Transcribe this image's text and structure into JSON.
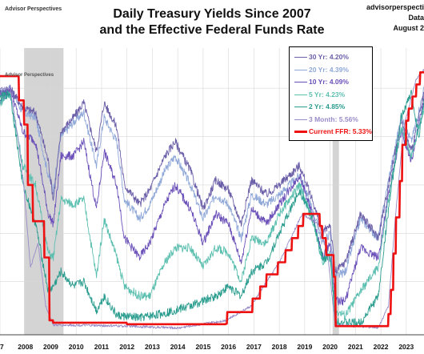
{
  "header": {
    "brand": "Advisor Perspectives",
    "title_line1": "Daily Treasury Yields Since 2007",
    "title_line2": "and the Effective Federal Funds Rate",
    "source_line1": "advisorperspecti",
    "source_line2": "Data",
    "source_line3": "August 2"
  },
  "colors": {
    "y30": "#6b5fa8",
    "y20": "#8fa8d8",
    "y10": "#6a4fb8",
    "y5": "#5bbfb0",
    "y2": "#2a9d8f",
    "m3": "#9a8cc8",
    "ffr": "#ee1111",
    "recession": "#d4d4d4",
    "grid": "#d8d8d8"
  },
  "chart_data": {
    "type": "line",
    "title": "Daily Treasury Yields Since 2007 and the Effective Federal Funds Rate",
    "xlabel": "",
    "ylabel": "",
    "xlim": [
      2007.0,
      2024.0
    ],
    "ylim": [
      0,
      5.6
    ],
    "x_ticks": [
      "7",
      "2008",
      "2009",
      "2010",
      "2011",
      "2012",
      "2013",
      "2014",
      "2015",
      "2016",
      "2017",
      "2018",
      "2019",
      "2020",
      "2021",
      "2022",
      "2023"
    ],
    "grid": true,
    "recessions": [
      [
        2007.95,
        2009.5
      ],
      [
        2020.1,
        2020.35
      ]
    ],
    "legend_position": "top-right",
    "series": [
      {
        "name": "30 Yr: 4.20%",
        "key": "y30",
        "points": [
          [
            2007.0,
            4.9
          ],
          [
            2007.4,
            5.0
          ],
          [
            2007.9,
            4.6
          ],
          [
            2008.4,
            4.5
          ],
          [
            2008.9,
            3.5
          ],
          [
            2009.1,
            2.7
          ],
          [
            2009.4,
            4.1
          ],
          [
            2009.9,
            4.4
          ],
          [
            2010.3,
            4.7
          ],
          [
            2010.8,
            3.7
          ],
          [
            2011.1,
            4.7
          ],
          [
            2011.6,
            4.2
          ],
          [
            2011.9,
            3.0
          ],
          [
            2012.5,
            2.6
          ],
          [
            2012.9,
            2.9
          ],
          [
            2013.5,
            3.6
          ],
          [
            2013.9,
            3.9
          ],
          [
            2014.5,
            3.3
          ],
          [
            2015.0,
            2.5
          ],
          [
            2015.5,
            3.1
          ],
          [
            2016.0,
            2.9
          ],
          [
            2016.5,
            2.2
          ],
          [
            2016.9,
            3.1
          ],
          [
            2017.5,
            2.8
          ],
          [
            2018.0,
            3.0
          ],
          [
            2018.8,
            3.4
          ],
          [
            2019.3,
            2.7
          ],
          [
            2019.7,
            2.0
          ],
          [
            2020.0,
            2.2
          ],
          [
            2020.2,
            1.2
          ],
          [
            2020.6,
            1.4
          ],
          [
            2021.2,
            2.4
          ],
          [
            2021.9,
            1.9
          ],
          [
            2022.3,
            3.0
          ],
          [
            2022.8,
            4.3
          ],
          [
            2023.2,
            3.7
          ],
          [
            2023.8,
            5.1
          ],
          [
            2024.0,
            4.2
          ]
        ]
      },
      {
        "name": "20 Yr: 4.39%",
        "key": "y20",
        "points": [
          [
            2007.0,
            4.9
          ],
          [
            2007.4,
            5.0
          ],
          [
            2007.9,
            4.5
          ],
          [
            2008.4,
            4.4
          ],
          [
            2008.9,
            3.2
          ],
          [
            2009.1,
            2.9
          ],
          [
            2009.4,
            4.0
          ],
          [
            2009.9,
            4.3
          ],
          [
            2010.3,
            4.5
          ],
          [
            2010.8,
            3.4
          ],
          [
            2011.1,
            4.4
          ],
          [
            2011.6,
            3.9
          ],
          [
            2011.9,
            2.7
          ],
          [
            2012.5,
            2.3
          ],
          [
            2012.9,
            2.6
          ],
          [
            2013.5,
            3.3
          ],
          [
            2013.9,
            3.6
          ],
          [
            2014.5,
            3.0
          ],
          [
            2015.0,
            2.3
          ],
          [
            2015.5,
            2.8
          ],
          [
            2016.0,
            2.6
          ],
          [
            2016.5,
            1.9
          ],
          [
            2016.9,
            2.8
          ],
          [
            2017.5,
            2.6
          ],
          [
            2018.0,
            2.8
          ],
          [
            2018.8,
            3.2
          ],
          [
            2019.3,
            2.5
          ],
          [
            2019.7,
            1.8
          ],
          [
            2020.0,
            2.0
          ],
          [
            2020.2,
            1.1
          ],
          [
            2020.6,
            1.2
          ],
          [
            2021.2,
            2.3
          ],
          [
            2021.9,
            1.9
          ],
          [
            2022.3,
            3.1
          ],
          [
            2022.8,
            4.4
          ],
          [
            2023.2,
            3.9
          ],
          [
            2023.8,
            5.2
          ],
          [
            2024.0,
            4.4
          ]
        ]
      },
      {
        "name": "10 Yr: 4.09%",
        "key": "y10",
        "points": [
          [
            2007.0,
            4.7
          ],
          [
            2007.4,
            5.0
          ],
          [
            2007.9,
            4.1
          ],
          [
            2008.4,
            3.9
          ],
          [
            2008.9,
            2.4
          ],
          [
            2009.1,
            2.2
          ],
          [
            2009.4,
            3.6
          ],
          [
            2009.9,
            3.6
          ],
          [
            2010.3,
            3.9
          ],
          [
            2010.8,
            2.5
          ],
          [
            2011.1,
            3.7
          ],
          [
            2011.6,
            3.0
          ],
          [
            2011.9,
            1.9
          ],
          [
            2012.5,
            1.5
          ],
          [
            2012.9,
            1.8
          ],
          [
            2013.5,
            2.6
          ],
          [
            2013.9,
            3.0
          ],
          [
            2014.5,
            2.5
          ],
          [
            2015.0,
            1.8
          ],
          [
            2015.5,
            2.4
          ],
          [
            2016.0,
            2.2
          ],
          [
            2016.5,
            1.4
          ],
          [
            2016.9,
            2.5
          ],
          [
            2017.5,
            2.2
          ],
          [
            2018.0,
            2.6
          ],
          [
            2018.8,
            3.2
          ],
          [
            2019.3,
            2.4
          ],
          [
            2019.7,
            1.5
          ],
          [
            2020.0,
            1.8
          ],
          [
            2020.2,
            0.6
          ],
          [
            2020.6,
            0.6
          ],
          [
            2021.2,
            1.7
          ],
          [
            2021.9,
            1.5
          ],
          [
            2022.3,
            2.8
          ],
          [
            2022.8,
            4.1
          ],
          [
            2023.2,
            3.5
          ],
          [
            2023.8,
            5.0
          ],
          [
            2024.0,
            4.1
          ]
        ]
      },
      {
        "name": "5 Yr: 4.23%",
        "key": "y5",
        "points": [
          [
            2007.0,
            4.7
          ],
          [
            2007.4,
            4.9
          ],
          [
            2007.9,
            3.4
          ],
          [
            2008.4,
            3.0
          ],
          [
            2008.9,
            1.6
          ],
          [
            2009.1,
            1.5
          ],
          [
            2009.4,
            2.7
          ],
          [
            2009.9,
            2.6
          ],
          [
            2010.3,
            2.7
          ],
          [
            2010.8,
            1.1
          ],
          [
            2011.1,
            2.3
          ],
          [
            2011.6,
            1.5
          ],
          [
            2011.9,
            0.9
          ],
          [
            2012.5,
            0.7
          ],
          [
            2012.9,
            0.7
          ],
          [
            2013.5,
            1.4
          ],
          [
            2013.9,
            1.7
          ],
          [
            2014.5,
            1.7
          ],
          [
            2015.0,
            1.3
          ],
          [
            2015.5,
            1.7
          ],
          [
            2016.0,
            1.6
          ],
          [
            2016.5,
            1.0
          ],
          [
            2016.9,
            1.9
          ],
          [
            2017.5,
            1.8
          ],
          [
            2018.0,
            2.4
          ],
          [
            2018.8,
            3.0
          ],
          [
            2019.3,
            2.3
          ],
          [
            2019.7,
            1.4
          ],
          [
            2020.0,
            1.6
          ],
          [
            2020.2,
            0.4
          ],
          [
            2020.6,
            0.3
          ],
          [
            2021.2,
            0.8
          ],
          [
            2021.9,
            1.3
          ],
          [
            2022.3,
            2.7
          ],
          [
            2022.8,
            4.2
          ],
          [
            2023.2,
            3.6
          ],
          [
            2023.8,
            4.8
          ],
          [
            2024.0,
            4.2
          ]
        ]
      },
      {
        "name": "2 Yr: 4.85%",
        "key": "y2",
        "points": [
          [
            2007.0,
            4.8
          ],
          [
            2007.4,
            4.9
          ],
          [
            2007.9,
            3.0
          ],
          [
            2008.4,
            2.2
          ],
          [
            2008.9,
            0.8
          ],
          [
            2009.1,
            0.9
          ],
          [
            2009.4,
            1.2
          ],
          [
            2009.9,
            0.9
          ],
          [
            2010.3,
            1.0
          ],
          [
            2010.8,
            0.4
          ],
          [
            2011.1,
            0.7
          ],
          [
            2011.6,
            0.3
          ],
          [
            2012.5,
            0.25
          ],
          [
            2013.5,
            0.35
          ],
          [
            2014.5,
            0.5
          ],
          [
            2015.0,
            0.6
          ],
          [
            2015.5,
            0.7
          ],
          [
            2016.0,
            0.9
          ],
          [
            2016.5,
            0.7
          ],
          [
            2016.9,
            1.2
          ],
          [
            2017.5,
            1.4
          ],
          [
            2018.0,
            2.0
          ],
          [
            2018.8,
            2.9
          ],
          [
            2019.3,
            2.3
          ],
          [
            2019.7,
            1.5
          ],
          [
            2020.0,
            1.5
          ],
          [
            2020.2,
            0.2
          ],
          [
            2020.6,
            0.15
          ],
          [
            2021.2,
            0.15
          ],
          [
            2021.9,
            0.7
          ],
          [
            2022.3,
            2.5
          ],
          [
            2022.8,
            4.4
          ],
          [
            2023.2,
            4.9
          ],
          [
            2023.5,
            4.0
          ],
          [
            2023.8,
            5.1
          ],
          [
            2024.0,
            4.85
          ]
        ]
      },
      {
        "name": "3 Month: 5.56%",
        "key": "m3",
        "points": [
          [
            2007.0,
            5.0
          ],
          [
            2007.4,
            5.0
          ],
          [
            2007.7,
            4.0
          ],
          [
            2007.9,
            3.2
          ],
          [
            2008.2,
            1.3
          ],
          [
            2008.5,
            1.8
          ],
          [
            2008.8,
            0.5
          ],
          [
            2009.1,
            0.1
          ],
          [
            2010.0,
            0.1
          ],
          [
            2012.0,
            0.08
          ],
          [
            2014.0,
            0.04
          ],
          [
            2015.9,
            0.2
          ],
          [
            2016.9,
            0.5
          ],
          [
            2017.5,
            1.0
          ],
          [
            2018.0,
            1.4
          ],
          [
            2018.9,
            2.4
          ],
          [
            2019.5,
            2.2
          ],
          [
            2019.9,
            1.6
          ],
          [
            2020.2,
            0.1
          ],
          [
            2021.9,
            0.05
          ],
          [
            2022.3,
            0.5
          ],
          [
            2022.6,
            2.5
          ],
          [
            2022.9,
            4.2
          ],
          [
            2023.4,
            5.2
          ],
          [
            2024.0,
            5.56
          ]
        ]
      },
      {
        "name": "Current FFR: 5.33%",
        "key": "ffr",
        "points": [
          [
            2007.0,
            5.25
          ],
          [
            2007.65,
            5.25
          ],
          [
            2007.75,
            4.75
          ],
          [
            2007.95,
            4.25
          ],
          [
            2008.1,
            3.0
          ],
          [
            2008.3,
            2.25
          ],
          [
            2008.75,
            1.5
          ],
          [
            2008.95,
            0.2
          ],
          [
            2009.1,
            0.15
          ],
          [
            2012.0,
            0.12
          ],
          [
            2015.9,
            0.13
          ],
          [
            2015.95,
            0.37
          ],
          [
            2016.95,
            0.65
          ],
          [
            2017.25,
            0.9
          ],
          [
            2017.5,
            1.15
          ],
          [
            2017.95,
            1.4
          ],
          [
            2018.25,
            1.65
          ],
          [
            2018.5,
            1.9
          ],
          [
            2018.75,
            2.15
          ],
          [
            2018.95,
            2.4
          ],
          [
            2019.55,
            2.4
          ],
          [
            2019.6,
            2.15
          ],
          [
            2019.7,
            1.9
          ],
          [
            2019.85,
            1.55
          ],
          [
            2020.15,
            1.1
          ],
          [
            2020.22,
            0.08
          ],
          [
            2022.2,
            0.08
          ],
          [
            2022.3,
            0.33
          ],
          [
            2022.4,
            0.83
          ],
          [
            2022.5,
            1.58
          ],
          [
            2022.6,
            2.33
          ],
          [
            2022.75,
            3.08
          ],
          [
            2022.85,
            3.83
          ],
          [
            2023.0,
            4.33
          ],
          [
            2023.1,
            4.58
          ],
          [
            2023.25,
            4.83
          ],
          [
            2023.4,
            5.08
          ],
          [
            2023.55,
            5.33
          ],
          [
            2024.0,
            5.33
          ]
        ]
      }
    ]
  }
}
